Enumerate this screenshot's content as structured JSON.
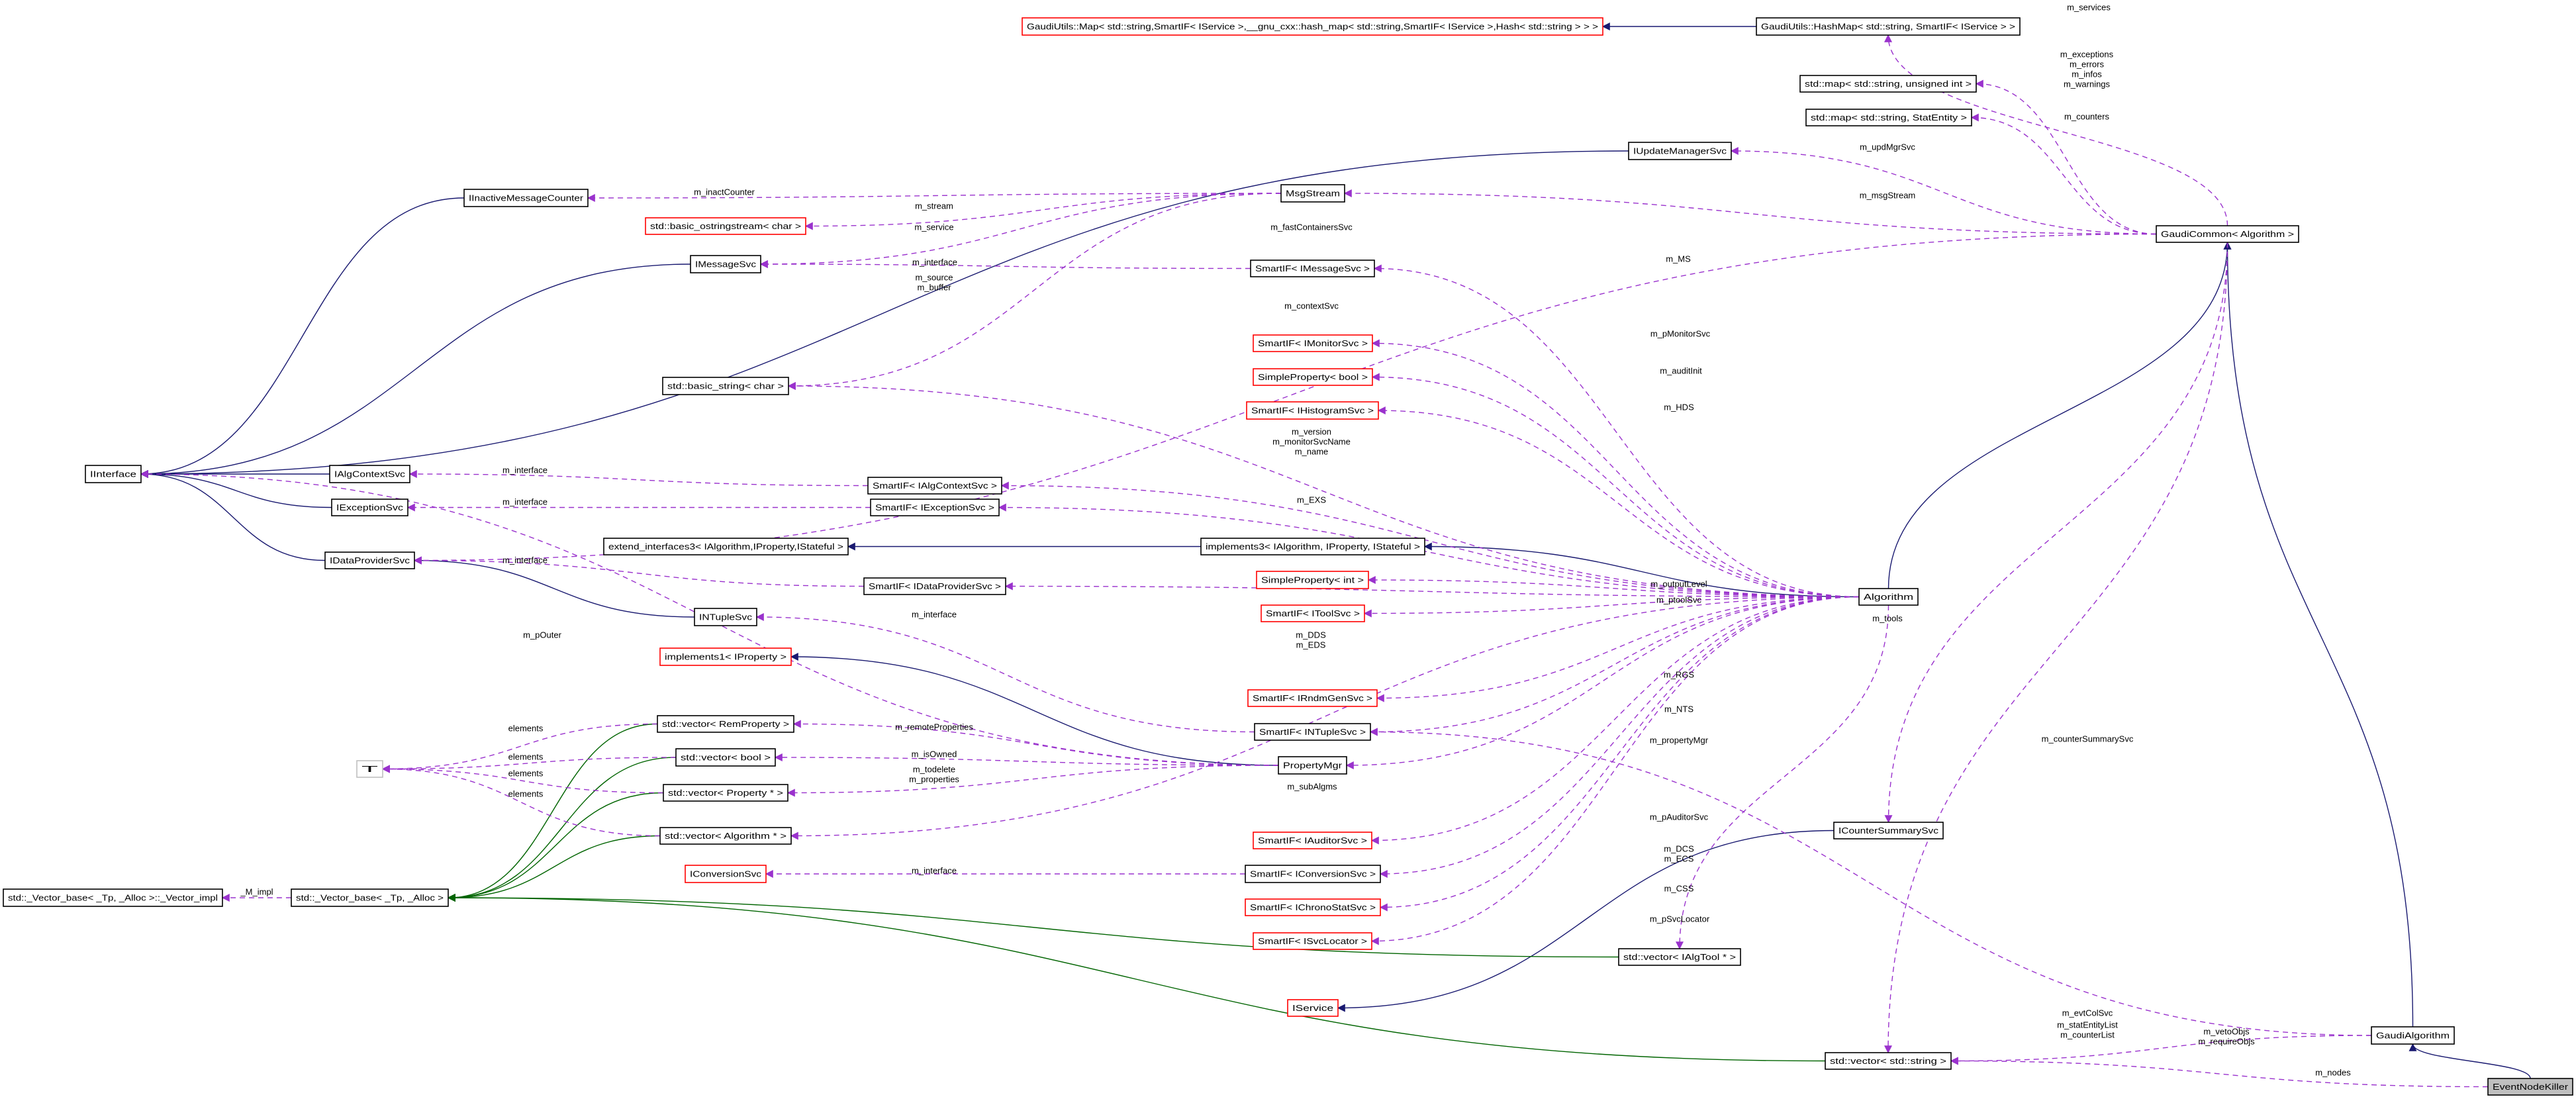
{
  "diagram": {
    "colors": {
      "inheritance": "#191970",
      "template_inheritance": "#006400",
      "usage": "#9a32cd",
      "undocumented_border": "#ff0000",
      "highlight_fill": "#bfbfbf"
    },
    "nodes": [
      {
        "id": "Map",
        "label": "GaudiUtils::Map< std::string,SmartIF< IService >,__gnu_cxx::hash_map< std::string,SmartIF< IService >,Hash< std::string > > >",
        "style": "red"
      },
      {
        "id": "HashMap",
        "label": "GaudiUtils::HashMap< std::string, SmartIF< IService > >",
        "style": "normal"
      },
      {
        "id": "mapUI",
        "label": "std::map< std::string, unsigned int >",
        "style": "normal"
      },
      {
        "id": "mapSE",
        "label": "std::map< std::string, StatEntity >",
        "style": "normal"
      },
      {
        "id": "IUpd",
        "label": "IUpdateManagerSvc",
        "style": "normal"
      },
      {
        "id": "GC",
        "label": "GaudiCommon< Algorithm >",
        "style": "normal"
      },
      {
        "id": "IInterface",
        "label": "IInterface",
        "style": "normal"
      },
      {
        "id": "IIMC",
        "label": "IInactiveMessageCounter",
        "style": "normal"
      },
      {
        "id": "ostr",
        "label": "std::basic_ostringstream< char >",
        "style": "red"
      },
      {
        "id": "IMsg",
        "label": "IMessageSvc",
        "style": "normal"
      },
      {
        "id": "bstr",
        "label": "std::basic_string< char >",
        "style": "normal"
      },
      {
        "id": "IACS",
        "label": "IAlgContextSvc",
        "style": "normal"
      },
      {
        "id": "IExc",
        "label": "IExceptionSvc",
        "style": "normal"
      },
      {
        "id": "IDPS",
        "label": "IDataProviderSvc",
        "style": "normal"
      },
      {
        "id": "ext3",
        "label": "extend_interfaces3< IAlgorithm,IProperty,IStateful >",
        "style": "normal"
      },
      {
        "id": "MsgStream",
        "label": "MsgStream",
        "style": "normal"
      },
      {
        "id": "SIMsg",
        "label": "SmartIF< IMessageSvc >",
        "style": "normal"
      },
      {
        "id": "SIMon",
        "label": "SmartIF< IMonitorSvc >",
        "style": "red"
      },
      {
        "id": "SPbool",
        "label": "SimpleProperty< bool >",
        "style": "red"
      },
      {
        "id": "SIHist",
        "label": "SmartIF< IHistogramSvc >",
        "style": "red"
      },
      {
        "id": "SIACS",
        "label": "SmartIF< IAlgContextSvc >",
        "style": "normal"
      },
      {
        "id": "SIExc",
        "label": "SmartIF< IExceptionSvc >",
        "style": "normal"
      },
      {
        "id": "impl3",
        "label": "implements3< IAlgorithm, IProperty, IStateful >",
        "style": "normal"
      },
      {
        "id": "SPint",
        "label": "SimpleProperty< int >",
        "style": "red"
      },
      {
        "id": "Alg",
        "label": "Algorithm",
        "style": "normal"
      },
      {
        "id": "SITool",
        "label": "SmartIF< IToolSvc >",
        "style": "red"
      },
      {
        "id": "SIDPS",
        "label": "SmartIF< IDataProviderSvc >",
        "style": "normal"
      },
      {
        "id": "INTuple",
        "label": "INTupleSvc",
        "style": "normal"
      },
      {
        "id": "impl1",
        "label": "implements1< IProperty >",
        "style": "red"
      },
      {
        "id": "SIRndm",
        "label": "SmartIF< IRndmGenSvc >",
        "style": "red"
      },
      {
        "id": "SINTuple",
        "label": "SmartIF< INTupleSvc >",
        "style": "normal"
      },
      {
        "id": "PropMgr",
        "label": "PropertyMgr",
        "style": "normal"
      },
      {
        "id": "vRem",
        "label": "std::vector< RemProperty >",
        "style": "normal"
      },
      {
        "id": "vBool",
        "label": "std::vector< bool >",
        "style": "normal"
      },
      {
        "id": "vProp",
        "label": "std::vector< Property * >",
        "style": "normal"
      },
      {
        "id": "vAlg",
        "label": "std::vector< Algorithm * >",
        "style": "normal"
      },
      {
        "id": "T",
        "label": "T",
        "style": "gray"
      },
      {
        "id": "SIAud",
        "label": "SmartIF< IAuditorSvc >",
        "style": "red"
      },
      {
        "id": "SIConv",
        "label": "SmartIF< IConversionSvc >",
        "style": "normal"
      },
      {
        "id": "IConv",
        "label": "IConversionSvc",
        "style": "red"
      },
      {
        "id": "SIChrono",
        "label": "SmartIF< IChronoStatSvc >",
        "style": "red"
      },
      {
        "id": "SISvcLoc",
        "label": "SmartIF< ISvcLocator >",
        "style": "red"
      },
      {
        "id": "vTool",
        "label": "std::vector< IAlgTool * >",
        "style": "normal"
      },
      {
        "id": "IService",
        "label": "IService",
        "style": "red"
      },
      {
        "id": "Vimpl",
        "label": "std::_Vector_base< _Tp, _Alloc >::_Vector_impl",
        "style": "normal"
      },
      {
        "id": "Vbase",
        "label": "std::_Vector_base< _Tp, _Alloc >",
        "style": "normal"
      },
      {
        "id": "ICSS",
        "label": "ICounterSummarySvc",
        "style": "normal"
      },
      {
        "id": "GA",
        "label": "GaudiAlgorithm",
        "style": "normal"
      },
      {
        "id": "vStr",
        "label": "std::vector< std::string >",
        "style": "normal"
      },
      {
        "id": "ENK",
        "label": "EventNodeKiller",
        "style": "highlight"
      }
    ],
    "edges": [
      {
        "from": "HashMap",
        "to": "Map",
        "kind": "inherit",
        "label": []
      },
      {
        "from": "IUpd",
        "to": "IInterface",
        "kind": "inherit",
        "label": []
      },
      {
        "from": "IIMC",
        "to": "IInterface",
        "kind": "inherit",
        "label": []
      },
      {
        "from": "IMsg",
        "to": "IInterface",
        "kind": "inherit",
        "label": []
      },
      {
        "from": "IACS",
        "to": "IInterface",
        "kind": "inherit",
        "label": []
      },
      {
        "from": "IExc",
        "to": "IInterface",
        "kind": "inherit",
        "label": []
      },
      {
        "from": "IDPS",
        "to": "IInterface",
        "kind": "inherit",
        "label": []
      },
      {
        "from": "INTuple",
        "to": "IDPS",
        "kind": "inherit",
        "label": []
      },
      {
        "from": "impl3",
        "to": "ext3",
        "kind": "inherit",
        "label": []
      },
      {
        "from": "Alg",
        "to": "impl3",
        "kind": "inherit",
        "label": []
      },
      {
        "from": "Alg",
        "to": "GC",
        "kind": "inherit",
        "label": []
      },
      {
        "from": "GA",
        "to": "GC",
        "kind": "inherit",
        "label": []
      },
      {
        "from": "ENK",
        "to": "GA",
        "kind": "inherit",
        "label": []
      },
      {
        "from": "PropMgr",
        "to": "impl1",
        "kind": "inherit",
        "label": []
      },
      {
        "from": "ICSS",
        "to": "IService",
        "kind": "inherit",
        "label": []
      },
      {
        "from": "vRem",
        "to": "Vbase",
        "kind": "green",
        "label": []
      },
      {
        "from": "vBool",
        "to": "Vbase",
        "kind": "green",
        "label": []
      },
      {
        "from": "vProp",
        "to": "Vbase",
        "kind": "green",
        "label": []
      },
      {
        "from": "vAlg",
        "to": "Vbase",
        "kind": "green",
        "label": []
      },
      {
        "from": "vTool",
        "to": "Vbase",
        "kind": "green",
        "label": []
      },
      {
        "from": "vStr",
        "to": "Vbase",
        "kind": "green",
        "label": []
      },
      {
        "from": "GC",
        "to": "HashMap",
        "kind": "usage",
        "label": [
          "m_services"
        ]
      },
      {
        "from": "GC",
        "to": "mapUI",
        "kind": "usage",
        "label": [
          "m_exceptions",
          "m_errors",
          "m_infos",
          "m_warnings"
        ]
      },
      {
        "from": "GC",
        "to": "mapSE",
        "kind": "usage",
        "label": [
          "m_counters"
        ]
      },
      {
        "from": "GC",
        "to": "IUpd",
        "kind": "usage",
        "label": [
          "m_updMgrSvc"
        ]
      },
      {
        "from": "GC",
        "to": "MsgStream",
        "kind": "usage",
        "label": [
          "m_msgStream"
        ]
      },
      {
        "from": "GC",
        "to": "IDPS",
        "kind": "usage",
        "label": [
          "m_fastContainersSvc"
        ]
      },
      {
        "from": "MsgStream",
        "to": "IIMC",
        "kind": "usage",
        "label": [
          "m_inactCounter"
        ]
      },
      {
        "from": "MsgStream",
        "to": "ostr",
        "kind": "usage",
        "label": [
          "m_stream"
        ]
      },
      {
        "from": "MsgStream",
        "to": "IMsg",
        "kind": "usage",
        "label": [
          "m_service"
        ]
      },
      {
        "from": "SIMsg",
        "to": "IMsg",
        "kind": "usage",
        "label": [
          "m_interface"
        ]
      },
      {
        "from": "MsgStream",
        "to": "bstr",
        "kind": "usage",
        "label": [
          "m_source",
          "m_buffer"
        ]
      },
      {
        "from": "Alg",
        "to": "SIMsg",
        "kind": "usage",
        "label": [
          "m_MS"
        ]
      },
      {
        "from": "Alg",
        "to": "SIACS",
        "kind": "usage",
        "label": [
          "m_contextSvc"
        ]
      },
      {
        "from": "Alg",
        "to": "SIMon",
        "kind": "usage",
        "label": [
          "m_pMonitorSvc"
        ]
      },
      {
        "from": "Alg",
        "to": "SPbool",
        "kind": "usage",
        "label": [
          "m_auditInit"
        ]
      },
      {
        "from": "Alg",
        "to": "SIHist",
        "kind": "usage",
        "label": [
          "m_HDS"
        ]
      },
      {
        "from": "Alg",
        "to": "bstr",
        "kind": "usage",
        "label": [
          "m_version",
          "m_monitorSvcName",
          "m_name"
        ]
      },
      {
        "from": "Alg",
        "to": "SIExc",
        "kind": "usage",
        "label": [
          "m_EXS"
        ]
      },
      {
        "from": "SIACS",
        "to": "IACS",
        "kind": "usage",
        "label": [
          "m_interface"
        ]
      },
      {
        "from": "SIExc",
        "to": "IExc",
        "kind": "usage",
        "label": [
          "m_interface"
        ]
      },
      {
        "from": "SIDPS",
        "to": "IDPS",
        "kind": "usage",
        "label": [
          "m_interface"
        ]
      },
      {
        "from": "Alg",
        "to": "SPint",
        "kind": "usage",
        "label": [
          "m_outputLevel"
        ]
      },
      {
        "from": "Alg",
        "to": "SITool",
        "kind": "usage",
        "label": [
          "m_ptoolSvc"
        ]
      },
      {
        "from": "Alg",
        "to": "SIDPS",
        "kind": "usage",
        "label": [
          "m_DDS",
          "m_EDS"
        ]
      },
      {
        "from": "SINTuple",
        "to": "INTuple",
        "kind": "usage",
        "label": [
          "m_interface"
        ]
      },
      {
        "from": "PropMgr",
        "to": "IInterface",
        "kind": "usage",
        "label": [
          "m_pOuter"
        ]
      },
      {
        "from": "Alg",
        "to": "SIRndm",
        "kind": "usage",
        "label": [
          "m_RGS"
        ]
      },
      {
        "from": "Alg",
        "to": "SINTuple",
        "kind": "usage",
        "label": [
          "m_NTS"
        ]
      },
      {
        "from": "Alg",
        "to": "PropMgr",
        "kind": "usage",
        "label": [
          "m_propertyMgr"
        ]
      },
      {
        "from": "PropMgr",
        "to": "vRem",
        "kind": "usage",
        "label": [
          "m_remoteProperties"
        ]
      },
      {
        "from": "PropMgr",
        "to": "vBool",
        "kind": "usage",
        "label": [
          "m_isOwned"
        ]
      },
      {
        "from": "PropMgr",
        "to": "vProp",
        "kind": "usage",
        "label": [
          "m_todelete",
          "m_properties"
        ]
      },
      {
        "from": "Alg",
        "to": "vAlg",
        "kind": "usage",
        "label": [
          "m_subAlgms"
        ]
      },
      {
        "from": "vRem",
        "to": "T",
        "kind": "usage",
        "label": [
          "elements"
        ]
      },
      {
        "from": "vBool",
        "to": "T",
        "kind": "usage",
        "label": [
          "elements"
        ]
      },
      {
        "from": "vProp",
        "to": "T",
        "kind": "usage",
        "label": [
          "elements"
        ]
      },
      {
        "from": "vAlg",
        "to": "T",
        "kind": "usage",
        "label": [
          "elements"
        ]
      },
      {
        "from": "Vbase",
        "to": "Vimpl",
        "kind": "usage",
        "label": [
          "_M_impl"
        ]
      },
      {
        "from": "Alg",
        "to": "SIAud",
        "kind": "usage",
        "label": [
          "m_pAuditorSvc"
        ]
      },
      {
        "from": "Alg",
        "to": "SIConv",
        "kind": "usage",
        "label": [
          "m_DCS",
          "m_ECS"
        ]
      },
      {
        "from": "SIConv",
        "to": "IConv",
        "kind": "usage",
        "label": [
          "m_interface"
        ]
      },
      {
        "from": "Alg",
        "to": "SIChrono",
        "kind": "usage",
        "label": [
          "m_CSS"
        ]
      },
      {
        "from": "Alg",
        "to": "SISvcLoc",
        "kind": "usage",
        "label": [
          "m_pSvcLocator"
        ]
      },
      {
        "from": "Alg",
        "to": "vTool",
        "kind": "usage",
        "label": [
          "m_tools"
        ]
      },
      {
        "from": "GC",
        "to": "ICSS",
        "kind": "usage",
        "label": [
          "m_counterSummarySvc"
        ]
      },
      {
        "from": "GA",
        "to": "SINTuple",
        "kind": "usage",
        "label": [
          "m_evtColSvc"
        ]
      },
      {
        "from": "GC",
        "to": "vStr",
        "kind": "usage",
        "label": [
          "m_statEntityList",
          "m_counterList"
        ]
      },
      {
        "from": "GA",
        "to": "vStr",
        "kind": "usage",
        "label": [
          "m_vetoObjs",
          "m_requireObjs"
        ]
      },
      {
        "from": "ENK",
        "to": "vStr",
        "kind": "usage",
        "label": [
          "m_nodes"
        ]
      }
    ]
  }
}
